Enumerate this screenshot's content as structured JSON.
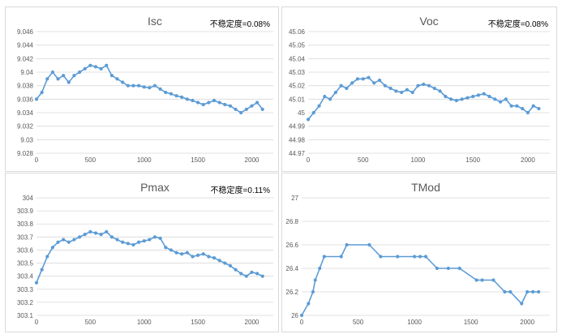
{
  "chart_data": [
    {
      "type": "line",
      "title": "Isc",
      "annotation": "不稳定度=0.08%",
      "color": "#5b9bd5",
      "xlim": [
        0,
        2200
      ],
      "ylim": [
        9.028,
        9.046
      ],
      "x_ticks": [
        "0",
        "500",
        "1000",
        "1500",
        "2000"
      ],
      "y_ticks": [
        "9.028",
        "9.03",
        "9.032",
        "9.034",
        "9.036",
        "9.038",
        "9.04",
        "9.042",
        "9.044",
        "9.046"
      ],
      "series": [
        {
          "x": [
            0,
            50,
            100,
            150,
            200,
            250,
            300,
            350,
            400,
            450,
            500,
            550,
            600,
            650,
            700,
            750,
            800,
            850,
            900,
            950,
            1000,
            1050,
            1100,
            1150,
            1200,
            1250,
            1300,
            1350,
            1400,
            1450,
            1500,
            1550,
            1600,
            1650,
            1700,
            1750,
            1800,
            1850,
            1900,
            1950,
            2000,
            2050,
            2100
          ],
          "values": [
            9.036,
            9.037,
            9.039,
            9.04,
            9.039,
            9.0395,
            9.0385,
            9.0395,
            9.04,
            9.0405,
            9.041,
            9.0408,
            9.0405,
            9.041,
            9.0395,
            9.039,
            9.0385,
            9.038,
            9.038,
            9.038,
            9.0378,
            9.0377,
            9.038,
            9.0375,
            9.037,
            9.0368,
            9.0365,
            9.0363,
            9.036,
            9.0358,
            9.0355,
            9.0352,
            9.0355,
            9.0358,
            9.0355,
            9.0352,
            9.035,
            9.0345,
            9.034,
            9.0345,
            9.035,
            9.0355,
            9.0345
          ]
        }
      ]
    },
    {
      "type": "line",
      "title": "Voc",
      "annotation": "不稳定度=0.08%",
      "color": "#5b9bd5",
      "xlim": [
        0,
        2200
      ],
      "ylim": [
        44.97,
        45.06
      ],
      "x_ticks": [
        "0",
        "500",
        "1000",
        "1500",
        "2000"
      ],
      "y_ticks": [
        "44.97",
        "44.98",
        "44.99",
        "45",
        "45.01",
        "45.02",
        "45.03",
        "45.04",
        "45.05",
        "45.06"
      ],
      "series": [
        {
          "x": [
            0,
            50,
            100,
            150,
            200,
            250,
            300,
            350,
            400,
            450,
            500,
            550,
            600,
            650,
            700,
            750,
            800,
            850,
            900,
            950,
            1000,
            1050,
            1100,
            1150,
            1200,
            1250,
            1300,
            1350,
            1400,
            1450,
            1500,
            1550,
            1600,
            1650,
            1700,
            1750,
            1800,
            1850,
            1900,
            1950,
            2000,
            2050,
            2100
          ],
          "values": [
            44.995,
            45.0,
            45.005,
            45.012,
            45.01,
            45.015,
            45.02,
            45.018,
            45.022,
            45.025,
            45.025,
            45.026,
            45.022,
            45.024,
            45.02,
            45.018,
            45.016,
            45.015,
            45.017,
            45.015,
            45.02,
            45.021,
            45.02,
            45.018,
            45.016,
            45.012,
            45.01,
            45.009,
            45.01,
            45.011,
            45.012,
            45.013,
            45.014,
            45.012,
            45.01,
            45.008,
            45.01,
            45.005,
            45.005,
            45.003,
            45.0,
            45.005,
            45.003
          ]
        }
      ]
    },
    {
      "type": "line",
      "title": "Pmax",
      "annotation": "不稳定度=0.11%",
      "color": "#5b9bd5",
      "xlim": [
        0,
        2200
      ],
      "ylim": [
        303.1,
        304
      ],
      "x_ticks": [
        "0",
        "500",
        "1000",
        "1500",
        "2000"
      ],
      "y_ticks": [
        "303.1",
        "303.2",
        "303.3",
        "303.4",
        "303.5",
        "303.6",
        "303.7",
        "303.8",
        "303.9",
        "304"
      ],
      "series": [
        {
          "x": [
            0,
            50,
            100,
            150,
            200,
            250,
            300,
            350,
            400,
            450,
            500,
            550,
            600,
            650,
            700,
            750,
            800,
            850,
            900,
            950,
            1000,
            1050,
            1100,
            1150,
            1200,
            1250,
            1300,
            1350,
            1400,
            1450,
            1500,
            1550,
            1600,
            1650,
            1700,
            1750,
            1800,
            1850,
            1900,
            1950,
            2000,
            2050,
            2100
          ],
          "values": [
            303.35,
            303.45,
            303.55,
            303.62,
            303.66,
            303.68,
            303.66,
            303.68,
            303.7,
            303.72,
            303.74,
            303.73,
            303.72,
            303.74,
            303.7,
            303.68,
            303.66,
            303.65,
            303.64,
            303.66,
            303.67,
            303.68,
            303.7,
            303.69,
            303.62,
            303.6,
            303.58,
            303.57,
            303.58,
            303.55,
            303.56,
            303.57,
            303.55,
            303.54,
            303.52,
            303.5,
            303.48,
            303.45,
            303.42,
            303.4,
            303.43,
            303.42,
            303.4
          ]
        }
      ]
    },
    {
      "type": "line",
      "title": "TMod",
      "annotation": "",
      "color": "#5b9bd5",
      "xlim": [
        0,
        2200
      ],
      "ylim": [
        26,
        27
      ],
      "x_ticks": [
        "0",
        "500",
        "1000",
        "1500",
        "2000"
      ],
      "y_ticks": [
        "26",
        "26.2",
        "26.4",
        "26.6",
        "26.8",
        "27"
      ],
      "series": [
        {
          "x": [
            0,
            60,
            100,
            120,
            160,
            200,
            350,
            400,
            600,
            700,
            850,
            1000,
            1050,
            1100,
            1200,
            1300,
            1400,
            1550,
            1600,
            1700,
            1800,
            1850,
            1950,
            2000,
            2050,
            2100
          ],
          "values": [
            26.0,
            26.1,
            26.2,
            26.3,
            26.4,
            26.5,
            26.5,
            26.6,
            26.6,
            26.5,
            26.5,
            26.5,
            26.5,
            26.5,
            26.4,
            26.4,
            26.4,
            26.3,
            26.3,
            26.3,
            26.2,
            26.2,
            26.1,
            26.2,
            26.2,
            26.2
          ]
        }
      ]
    }
  ]
}
